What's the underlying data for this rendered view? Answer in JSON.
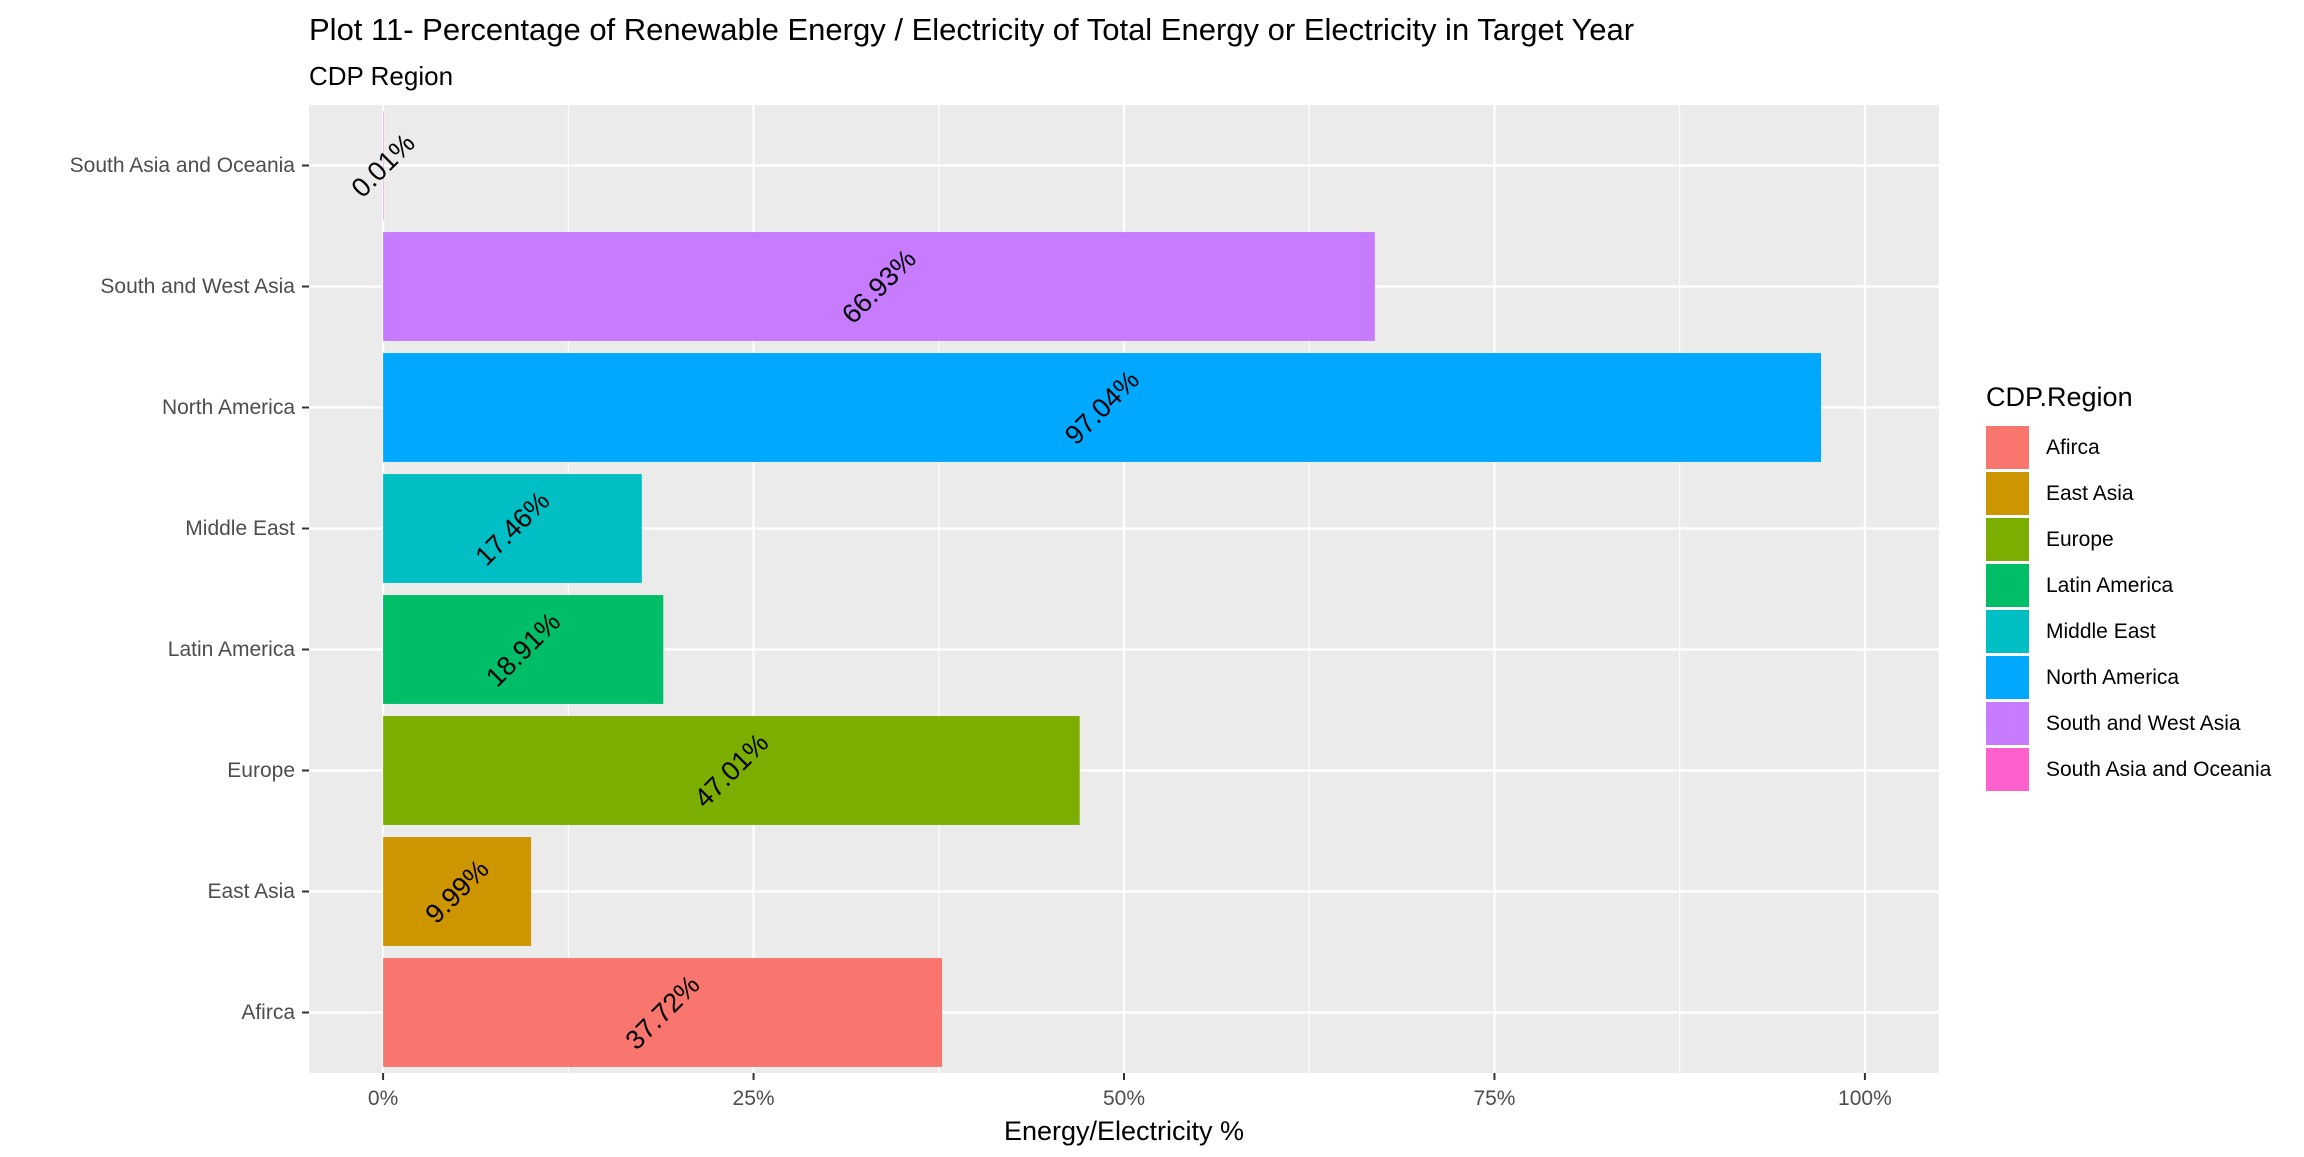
{
  "chart_data": {
    "type": "bar",
    "orientation": "horizontal",
    "title": "Plot 11- Percentage of Renewable Energy / Electricity of Total Energy or Electricity in Target Year",
    "subtitle": "CDP Region",
    "xlabel": "Energy/Electricity %",
    "ylabel": "",
    "xlim": [
      -5,
      105
    ],
    "x_ticks": [
      0,
      25,
      50,
      75,
      100
    ],
    "x_tick_labels": [
      "0%",
      "25%",
      "50%",
      "75%",
      "100%"
    ],
    "grid": true,
    "legend": {
      "title": "CDP.Region",
      "position": "right",
      "entries": [
        "Afirca",
        "East Asia",
        "Europe",
        "Latin America",
        "Middle East",
        "North America",
        "South and West Asia",
        "South Asia and Oceania"
      ]
    },
    "categories": [
      "Afirca",
      "East Asia",
      "Europe",
      "Latin America",
      "Middle East",
      "North America",
      "South and West Asia",
      "South Asia and Oceania"
    ],
    "values": [
      37.72,
      9.99,
      47.01,
      18.91,
      17.46,
      97.04,
      66.93,
      0.01
    ],
    "data_labels": [
      "37.72%",
      "9.99%",
      "47.01%",
      "18.91%",
      "17.46%",
      "97.04%",
      "66.93%",
      "0.01%"
    ],
    "colors": [
      "#F8766D",
      "#CD9600",
      "#7CAE00",
      "#00BE67",
      "#00BFC4",
      "#00A9FF",
      "#C77CFF",
      "#FF61CC"
    ]
  }
}
